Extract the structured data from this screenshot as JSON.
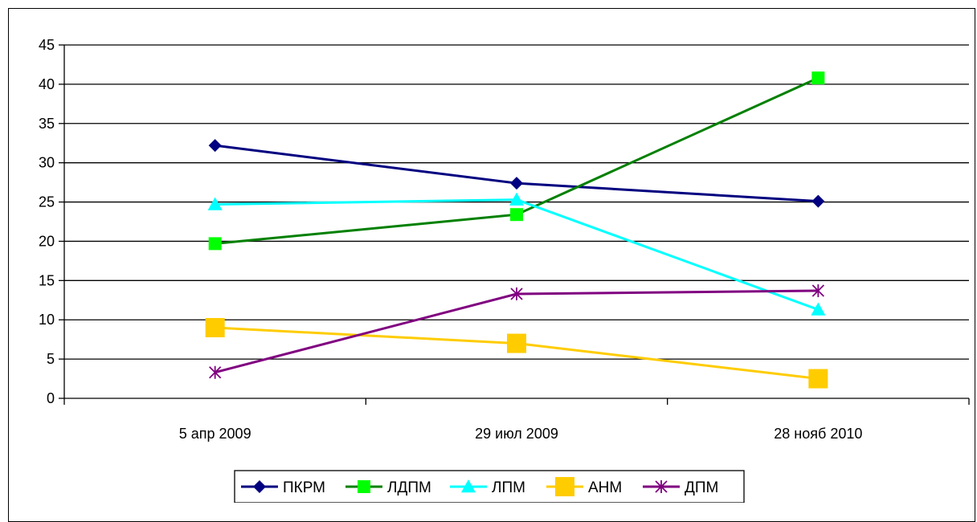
{
  "chart_data": {
    "type": "line",
    "title": "",
    "xlabel": "",
    "ylabel": "",
    "categories": [
      "5 апр 2009",
      "29 июл 2009",
      "28 нояб 2010"
    ],
    "ylim": [
      0,
      45
    ],
    "yticks": [
      0,
      5,
      10,
      15,
      20,
      25,
      30,
      35,
      40,
      45
    ],
    "grid": true,
    "legend_position": "bottom",
    "series": [
      {
        "name": "ПКРМ",
        "color": "#000080",
        "marker": "diamond",
        "values": [
          32.2,
          27.4,
          25.1
        ]
      },
      {
        "name": "ЛДПМ",
        "color": "#008000",
        "marker": "square",
        "values": [
          19.7,
          23.4,
          40.8
        ]
      },
      {
        "name": "ЛПМ",
        "color": "#00FFFF",
        "marker": "triangle",
        "values": [
          24.7,
          25.3,
          11.3
        ]
      },
      {
        "name": "АНМ",
        "color": "#FFCC00",
        "marker": "square-large",
        "values": [
          9.0,
          7.0,
          2.5
        ]
      },
      {
        "name": "ДПМ",
        "color": "#800080",
        "marker": "asterisk",
        "values": [
          3.3,
          13.3,
          13.7
        ]
      }
    ]
  }
}
